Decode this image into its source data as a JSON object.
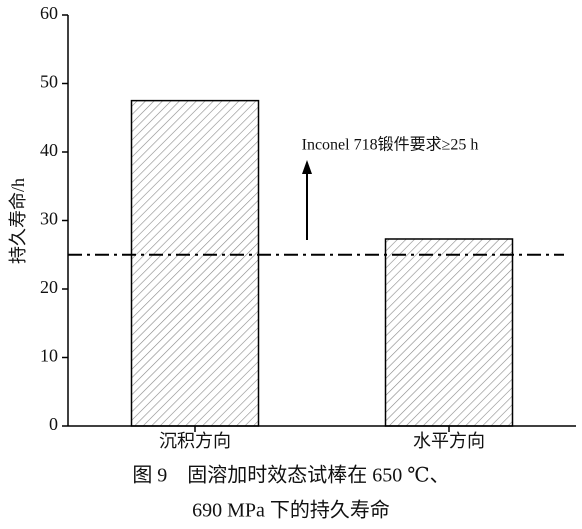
{
  "chart_data": {
    "type": "bar",
    "categories": [
      "沉积方向",
      "水平方向"
    ],
    "values": [
      47.5,
      27.3
    ],
    "color": "#ffffff",
    "ylabel": "持久寿命/h",
    "ylim": [
      0,
      60
    ],
    "yticks": [
      0,
      10,
      20,
      30,
      40,
      50,
      60
    ],
    "reference_line": 25,
    "annotation": "Inconel 718锻件要求≥25 h",
    "caption": [
      "图 9　固溶加时效态试棒在 650 ℃、",
      "690 MPa 下的持久寿命"
    ]
  }
}
